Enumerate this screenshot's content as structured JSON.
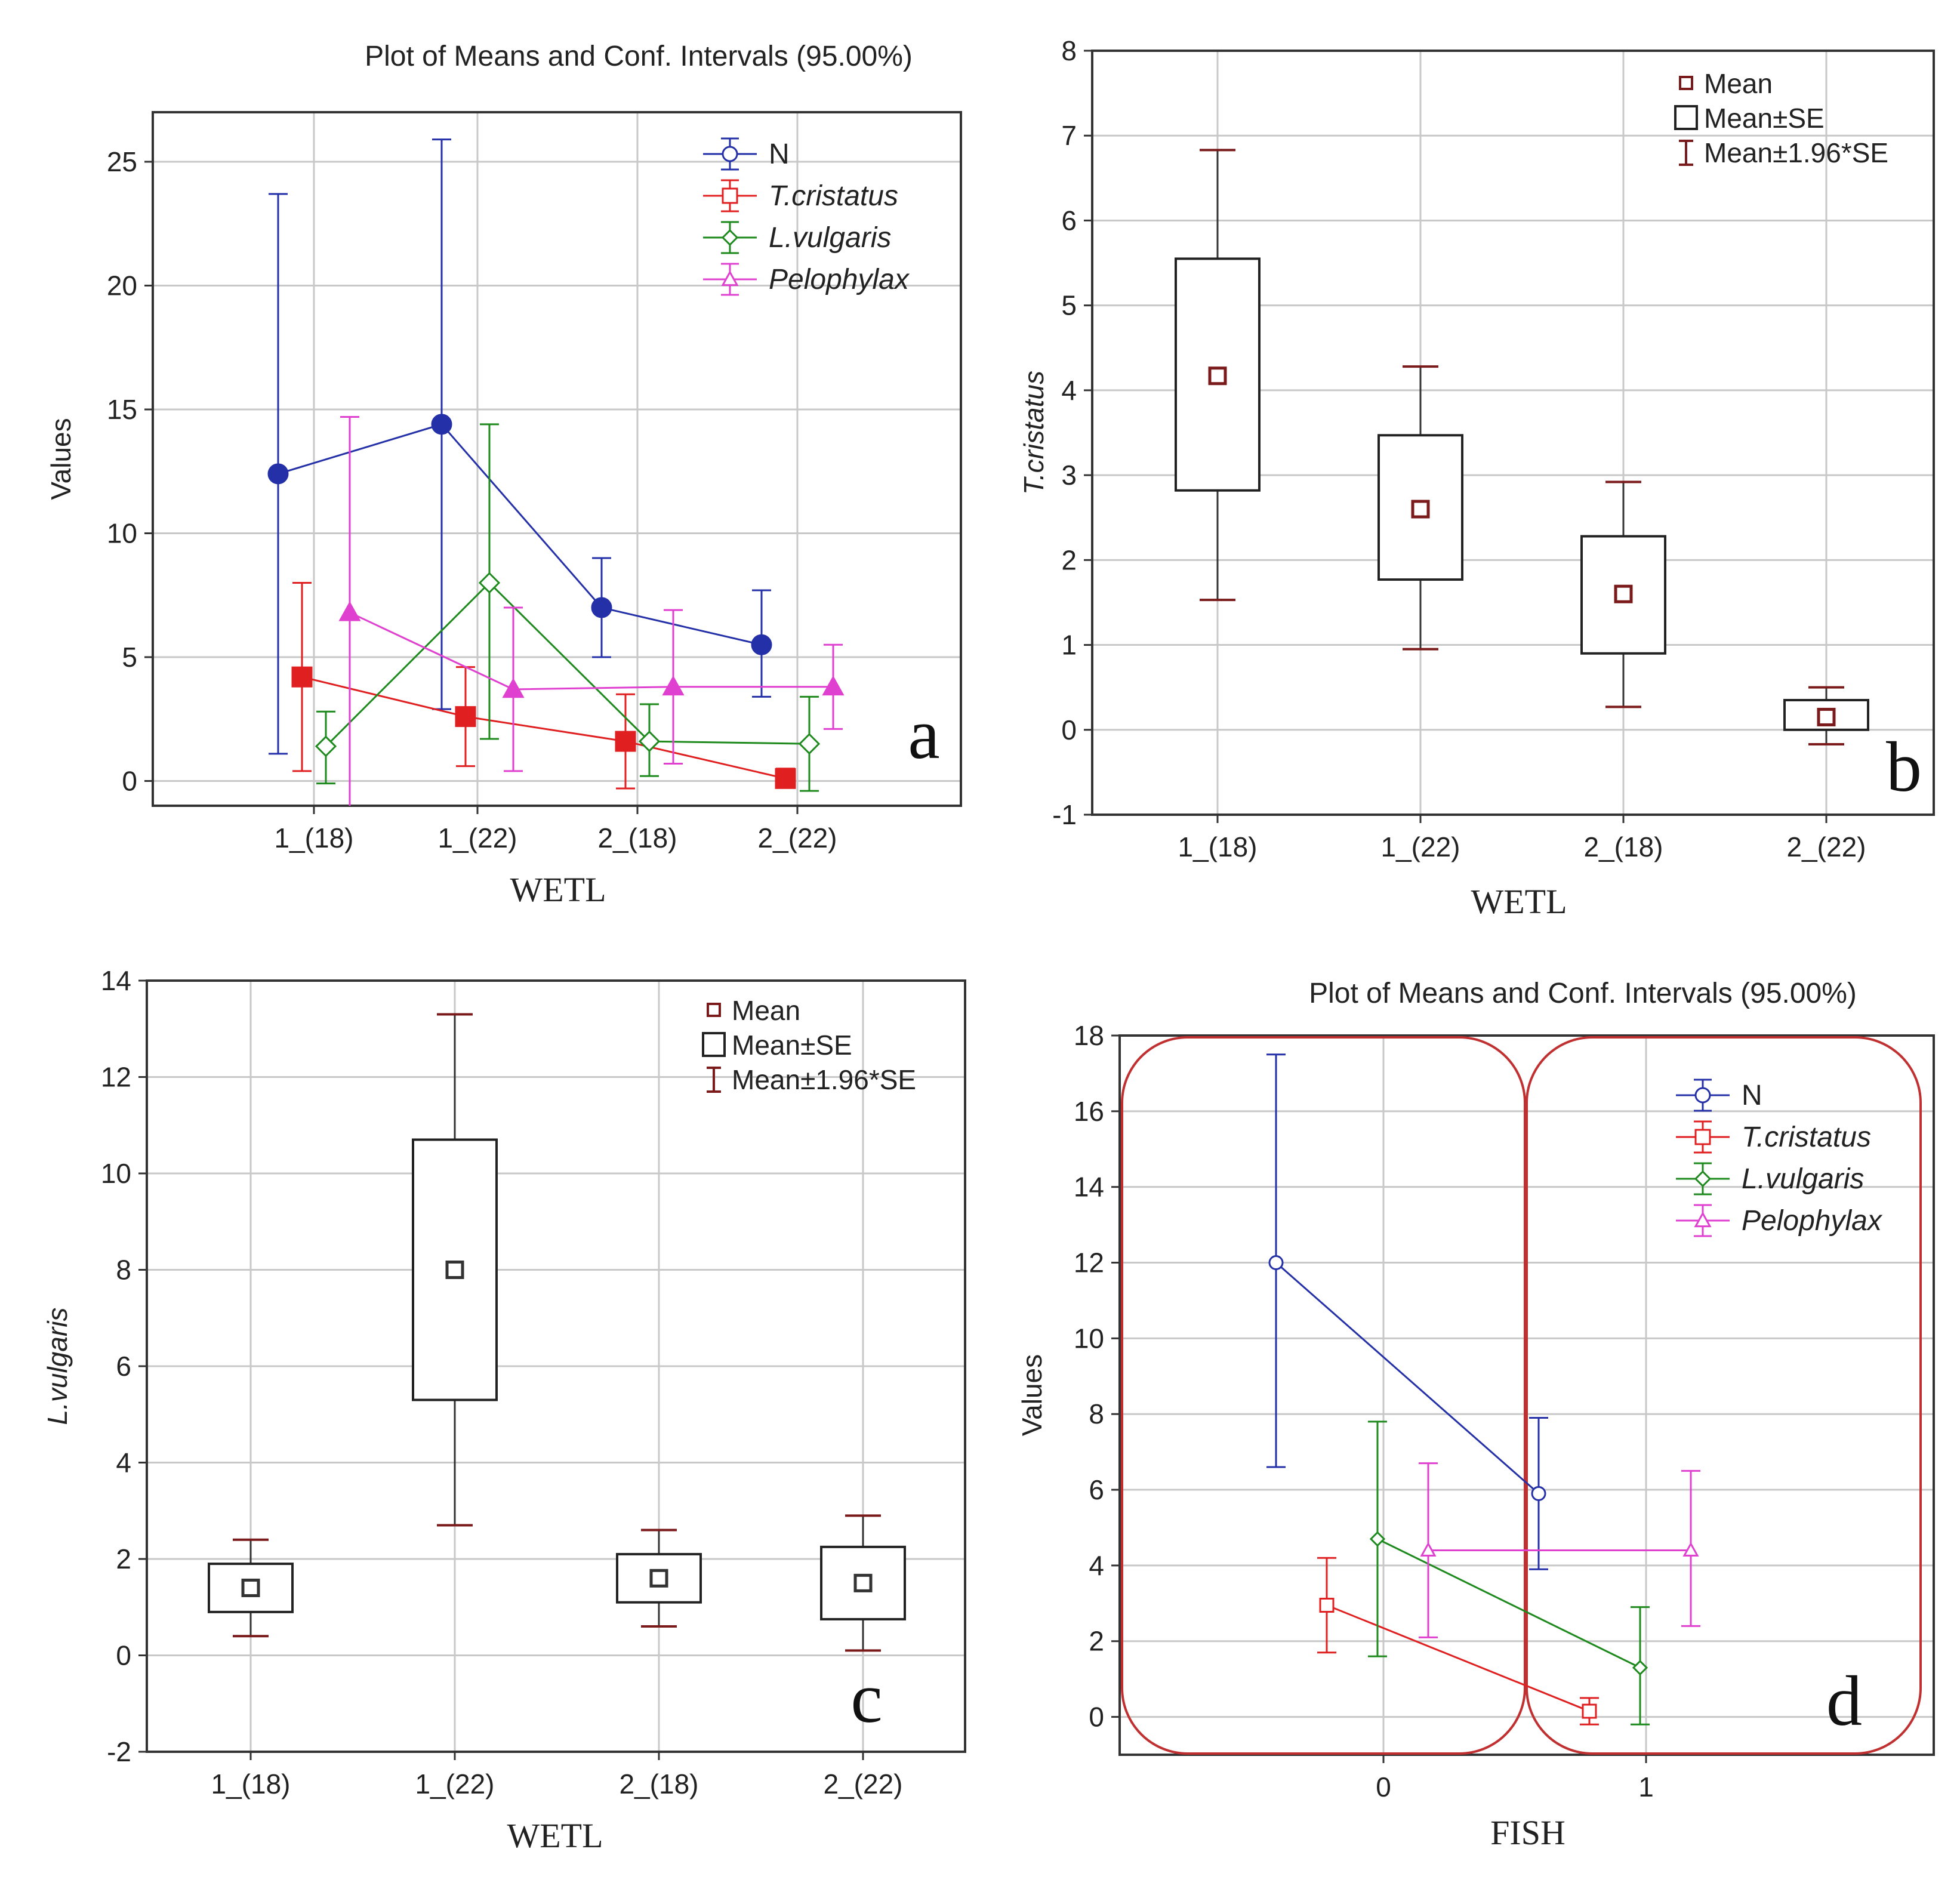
{
  "colors": {
    "N": "#2430a8",
    "T": "#e02020",
    "L": "#1e8a1e",
    "P": "#e040d0",
    "box": "#7a1a1a",
    "grid": "#c8c8c8",
    "frame": "#333333",
    "round": "#c03030"
  },
  "chart_data": [
    {
      "panel": "a",
      "type": "line",
      "title": "Plot of Means and Conf. Intervals (95.00%)",
      "xlabel": "WETL",
      "ylabel": "Values",
      "categories": [
        "1_(18)",
        "1_(22)",
        "2_(18)",
        "2_(22)"
      ],
      "ylim": [
        -1,
        27
      ],
      "yticks": [
        0,
        5,
        10,
        15,
        20,
        25
      ],
      "grid": true,
      "legend": "top-right",
      "series": [
        {
          "name": "N",
          "italic": false,
          "marker": "circle",
          "means": [
            12.4,
            14.4,
            7.0,
            5.5
          ],
          "lower": [
            1.1,
            2.9,
            5.0,
            3.4
          ],
          "upper": [
            23.7,
            25.9,
            9.0,
            7.7
          ]
        },
        {
          "name": "T.cristatus",
          "italic": true,
          "marker": "square",
          "means": [
            4.2,
            2.6,
            1.6,
            0.1
          ],
          "lower": [
            0.4,
            0.6,
            -0.3,
            -0.2
          ],
          "upper": [
            8.0,
            4.6,
            3.5,
            0.5
          ]
        },
        {
          "name": "L.vulgaris",
          "italic": true,
          "marker": "diamond",
          "means": [
            1.4,
            8.0,
            1.6,
            1.5
          ],
          "lower": [
            -0.1,
            1.7,
            0.2,
            -0.4
          ],
          "upper": [
            2.8,
            14.4,
            3.1,
            3.4
          ]
        },
        {
          "name": "Pelophylax",
          "italic": true,
          "marker": "triangle",
          "means": [
            6.8,
            3.7,
            3.8,
            3.8
          ],
          "lower": [
            -1.2,
            0.4,
            0.7,
            2.1
          ],
          "upper": [
            14.7,
            7.0,
            6.9,
            5.5
          ]
        }
      ],
      "panel_letter": "a"
    },
    {
      "panel": "b",
      "type": "box",
      "xlabel": "WETL",
      "ylabel": "T.cristatus",
      "categories": [
        "1_(18)",
        "1_(22)",
        "2_(18)",
        "2_(22)"
      ],
      "ylim": [
        -1,
        8
      ],
      "yticks": [
        -1,
        0,
        1,
        2,
        3,
        4,
        5,
        6,
        7,
        8
      ],
      "grid": true,
      "legend": "top-right",
      "legend_entries": [
        "Mean",
        "Mean±SE",
        "Mean±1.96*SE"
      ],
      "means": [
        4.17,
        2.6,
        1.6,
        0.15
      ],
      "se_low": [
        2.82,
        1.77,
        0.9,
        0.0
      ],
      "se_high": [
        5.55,
        3.47,
        2.28,
        0.35
      ],
      "ci_low": [
        1.53,
        0.95,
        0.27,
        -0.17
      ],
      "ci_high": [
        6.83,
        4.28,
        2.92,
        0.5
      ],
      "panel_letter": "b"
    },
    {
      "panel": "c",
      "type": "box",
      "xlabel": "WETL",
      "ylabel": "L.vulgaris",
      "categories": [
        "1_(18)",
        "1_(22)",
        "2_(18)",
        "2_(22)"
      ],
      "ylim": [
        -2,
        14
      ],
      "yticks": [
        -2,
        0,
        2,
        4,
        6,
        8,
        10,
        12,
        14
      ],
      "grid": true,
      "legend": "top-right",
      "legend_entries": [
        "Mean",
        "Mean±SE",
        "Mean±1.96*SE"
      ],
      "means": [
        1.4,
        8.0,
        1.6,
        1.5
      ],
      "se_low": [
        0.9,
        5.3,
        1.1,
        0.75
      ],
      "se_high": [
        1.9,
        10.7,
        2.1,
        2.25
      ],
      "ci_low": [
        0.4,
        2.7,
        0.6,
        0.1
      ],
      "ci_high": [
        2.4,
        13.3,
        2.6,
        2.9
      ],
      "panel_letter": "c"
    },
    {
      "panel": "d",
      "type": "line",
      "title": "Plot of Means and Conf. Intervals (95.00%)",
      "xlabel": "FISH",
      "ylabel": "Values",
      "categories": [
        "0",
        "1"
      ],
      "ylim": [
        -1,
        18
      ],
      "yticks": [
        0,
        2,
        4,
        6,
        8,
        10,
        12,
        14,
        16,
        18
      ],
      "grid": true,
      "legend": "top-right",
      "series": [
        {
          "name": "N",
          "italic": false,
          "marker": "circle",
          "means": [
            12.0,
            5.9
          ],
          "lower": [
            6.6,
            3.9
          ],
          "upper": [
            17.5,
            7.9
          ]
        },
        {
          "name": "T.cristatus",
          "italic": true,
          "marker": "square",
          "means": [
            2.95,
            0.15
          ],
          "lower": [
            1.7,
            -0.2
          ],
          "upper": [
            4.2,
            0.5
          ]
        },
        {
          "name": "L.vulgaris",
          "italic": true,
          "marker": "diamond",
          "means": [
            4.7,
            1.3
          ],
          "lower": [
            1.6,
            -0.2
          ],
          "upper": [
            7.8,
            2.9
          ]
        },
        {
          "name": "Pelophylax",
          "italic": true,
          "marker": "triangle",
          "means": [
            4.4,
            4.4
          ],
          "lower": [
            2.1,
            2.4
          ],
          "upper": [
            6.7,
            6.5
          ]
        }
      ],
      "panel_letter": "d"
    }
  ]
}
